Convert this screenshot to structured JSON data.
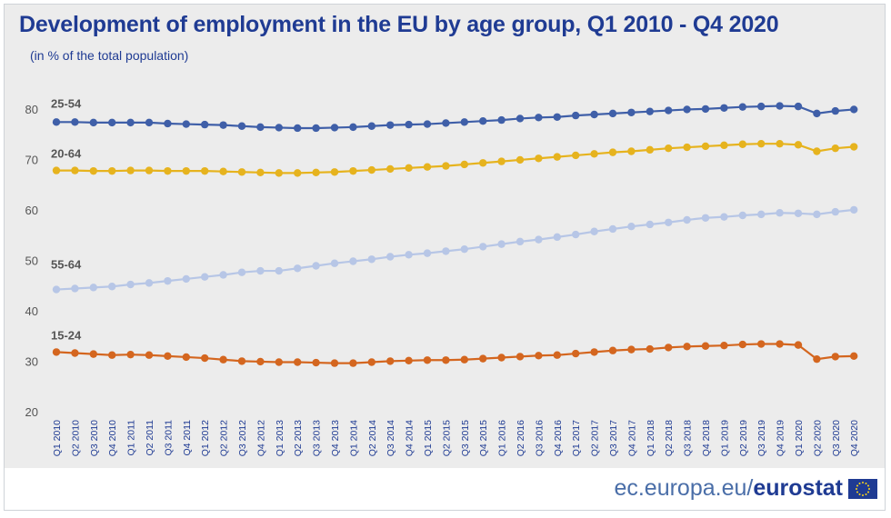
{
  "header": {
    "title": "Development of employment in the EU by age group,  Q1 2010 - Q4 2020",
    "subtitle": "(in % of the total population)"
  },
  "footer": {
    "site": "ec.europa.eu/",
    "brand": "eurostat"
  },
  "colors": {
    "background": "#ececec",
    "title": "#1f3b93",
    "series_25_54": "#3f5fa8",
    "series_20_64": "#e6b31e",
    "series_55_64": "#b7c6e6",
    "series_15_24": "#d4661f"
  },
  "chart_data": {
    "type": "line",
    "title": "Development of employment in the EU by age group,  Q1 2010 - Q4 2020",
    "subtitle": "(in % of the total population)",
    "ylim": [
      20,
      80
    ],
    "yticks": [
      20,
      30,
      40,
      50,
      60,
      70,
      80
    ],
    "grid": false,
    "categories": [
      "Q1 2010",
      "Q2 2010",
      "Q3 2010",
      "Q4 2010",
      "Q1 2011",
      "Q2 2011",
      "Q3 2011",
      "Q4 2011",
      "Q1 2012",
      "Q2 2012",
      "Q3 2012",
      "Q4 2012",
      "Q1 2013",
      "Q2 2013",
      "Q3 2013",
      "Q4 2013",
      "Q1 2014",
      "Q2 2014",
      "Q3 2014",
      "Q4 2014",
      "Q1 2015",
      "Q2 2015",
      "Q3 2015",
      "Q4 2015",
      "Q1 2016",
      "Q2 2016",
      "Q3 2016",
      "Q4 2016",
      "Q1 2017",
      "Q2 2017",
      "Q3 2017",
      "Q4 2017",
      "Q1 2018",
      "Q2 2018",
      "Q3 2018",
      "Q4 2018",
      "Q1 2019",
      "Q2 2019",
      "Q3 2019",
      "Q4 2019",
      "Q1 2020",
      "Q2 2020",
      "Q3 2020",
      "Q4 2020"
    ],
    "series": [
      {
        "name": "25-54",
        "color": "#3f5fa8",
        "values": [
          77.6,
          77.6,
          77.5,
          77.5,
          77.5,
          77.5,
          77.3,
          77.2,
          77.1,
          77.0,
          76.8,
          76.6,
          76.5,
          76.4,
          76.4,
          76.5,
          76.6,
          76.8,
          77.0,
          77.1,
          77.2,
          77.4,
          77.6,
          77.8,
          78.0,
          78.3,
          78.5,
          78.6,
          78.9,
          79.1,
          79.3,
          79.5,
          79.7,
          79.9,
          80.1,
          80.2,
          80.4,
          80.6,
          80.7,
          80.8,
          80.7,
          79.3,
          79.8,
          80.1
        ]
      },
      {
        "name": "20-64",
        "color": "#e6b31e",
        "values": [
          68.0,
          68.0,
          67.9,
          67.9,
          68.0,
          68.0,
          67.9,
          67.9,
          67.9,
          67.8,
          67.7,
          67.6,
          67.5,
          67.5,
          67.6,
          67.7,
          67.9,
          68.1,
          68.3,
          68.5,
          68.7,
          68.9,
          69.2,
          69.5,
          69.8,
          70.1,
          70.4,
          70.7,
          71.0,
          71.3,
          71.6,
          71.8,
          72.1,
          72.4,
          72.6,
          72.8,
          73.0,
          73.2,
          73.3,
          73.3,
          73.1,
          71.8,
          72.4,
          72.7
        ]
      },
      {
        "name": "55-64",
        "color": "#b7c6e6",
        "values": [
          44.4,
          44.6,
          44.8,
          45.0,
          45.4,
          45.7,
          46.1,
          46.5,
          46.9,
          47.3,
          47.8,
          48.1,
          48.1,
          48.6,
          49.1,
          49.6,
          50.0,
          50.4,
          50.9,
          51.3,
          51.6,
          52.0,
          52.4,
          52.9,
          53.4,
          53.9,
          54.3,
          54.8,
          55.3,
          55.9,
          56.4,
          56.9,
          57.3,
          57.7,
          58.2,
          58.6,
          58.8,
          59.1,
          59.3,
          59.6,
          59.5,
          59.3,
          59.8,
          60.2
        ]
      },
      {
        "name": "15-24",
        "color": "#d4661f",
        "values": [
          32.0,
          31.8,
          31.6,
          31.4,
          31.5,
          31.4,
          31.2,
          31.0,
          30.8,
          30.5,
          30.2,
          30.1,
          30.0,
          30.0,
          29.9,
          29.8,
          29.8,
          30.0,
          30.2,
          30.3,
          30.4,
          30.4,
          30.5,
          30.7,
          30.9,
          31.1,
          31.3,
          31.4,
          31.7,
          32.0,
          32.3,
          32.5,
          32.6,
          32.9,
          33.1,
          33.2,
          33.3,
          33.5,
          33.6,
          33.6,
          33.4,
          30.6,
          31.1,
          31.2
        ]
      }
    ]
  }
}
